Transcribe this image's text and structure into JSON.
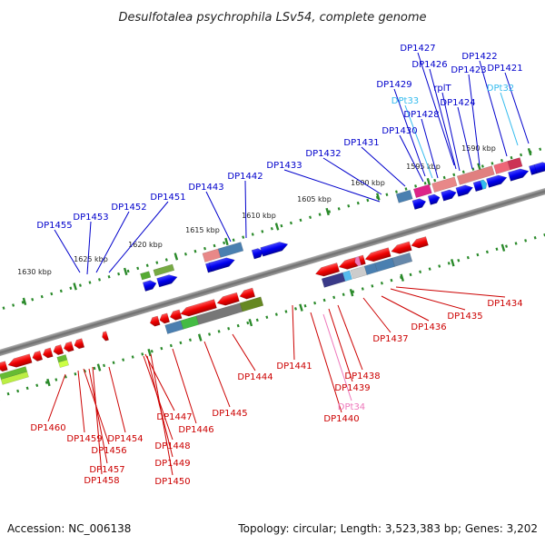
{
  "title": "Desulfotalea psychrophila LSv54, complete genome",
  "footer": {
    "accession": "Accession: NC_006138",
    "topology": "Topology: circular; Length: 3,523,383 bp; Genes: 3,202"
  },
  "colors": {
    "top_gene": "#0000cc",
    "top_trna": "#33bbee",
    "bottom_gene": "#cc0000",
    "bottom_trna": "#ee77bb",
    "backbone": "#888888",
    "tick": "#2a8a2a"
  },
  "scale_ticks": [
    {
      "label": "1630 kbp"
    },
    {
      "label": "1625 kbp"
    },
    {
      "label": "1620 kbp"
    },
    {
      "label": "1615 kbp"
    },
    {
      "label": "1610 kbp"
    },
    {
      "label": "1605 kbp"
    },
    {
      "label": "1600 kbp"
    },
    {
      "label": "1595 kbp"
    },
    {
      "label": "1590 kbp"
    }
  ],
  "top_labels": [
    {
      "text": "DP1455",
      "kind": "gene"
    },
    {
      "text": "DP1453",
      "kind": "gene"
    },
    {
      "text": "DP1452",
      "kind": "gene"
    },
    {
      "text": "DP1451",
      "kind": "gene"
    },
    {
      "text": "DP1443",
      "kind": "gene"
    },
    {
      "text": "DP1442",
      "kind": "gene"
    },
    {
      "text": "DP1433",
      "kind": "gene"
    },
    {
      "text": "DP1432",
      "kind": "gene"
    },
    {
      "text": "DP1431",
      "kind": "gene"
    },
    {
      "text": "DP1430",
      "kind": "gene"
    },
    {
      "text": "DP1428",
      "kind": "gene"
    },
    {
      "text": "DPt33",
      "kind": "trna"
    },
    {
      "text": "DP1429",
      "kind": "gene"
    },
    {
      "text": "DP1424",
      "kind": "gene"
    },
    {
      "text": "rplT",
      "kind": "gene"
    },
    {
      "text": "DP1426",
      "kind": "gene"
    },
    {
      "text": "DP1427",
      "kind": "gene"
    },
    {
      "text": "DP1423",
      "kind": "gene"
    },
    {
      "text": "DP1422",
      "kind": "gene"
    },
    {
      "text": "DPt32",
      "kind": "trna"
    },
    {
      "text": "DP1421",
      "kind": "gene"
    }
  ],
  "bottom_labels": [
    {
      "text": "DP1460",
      "kind": "gene"
    },
    {
      "text": "DP1459",
      "kind": "gene"
    },
    {
      "text": "DP1456",
      "kind": "gene"
    },
    {
      "text": "DP1454",
      "kind": "gene"
    },
    {
      "text": "DP1457",
      "kind": "gene"
    },
    {
      "text": "DP1458",
      "kind": "gene"
    },
    {
      "text": "DP1447",
      "kind": "gene"
    },
    {
      "text": "DP1448",
      "kind": "gene"
    },
    {
      "text": "DP1449",
      "kind": "gene"
    },
    {
      "text": "DP1450",
      "kind": "gene"
    },
    {
      "text": "DP1446",
      "kind": "gene"
    },
    {
      "text": "DP1445",
      "kind": "gene"
    },
    {
      "text": "DP1444",
      "kind": "gene"
    },
    {
      "text": "DP1441",
      "kind": "gene"
    },
    {
      "text": "DP1440",
      "kind": "gene"
    },
    {
      "text": "DPt34",
      "kind": "trna"
    },
    {
      "text": "DP1439",
      "kind": "gene"
    },
    {
      "text": "DP1438",
      "kind": "gene"
    },
    {
      "text": "DP1437",
      "kind": "gene"
    },
    {
      "text": "DP1436",
      "kind": "gene"
    },
    {
      "text": "DP1435",
      "kind": "gene"
    },
    {
      "text": "DP1434",
      "kind": "gene"
    }
  ]
}
